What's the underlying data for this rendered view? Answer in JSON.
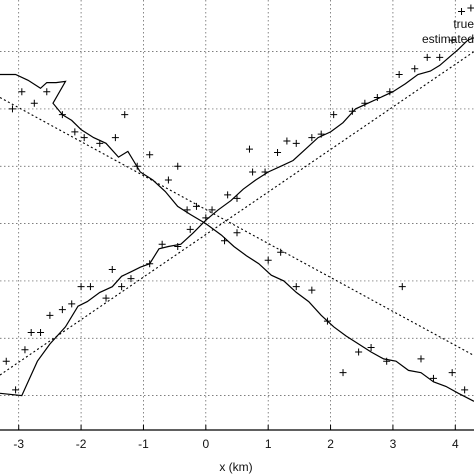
{
  "chart_data": {
    "type": "line",
    "title": "",
    "xlabel": "x (km)",
    "ylabel": "",
    "xlim": [
      -3.3,
      4.3
    ],
    "ylim": [
      -1.8,
      1.95
    ],
    "grid": true,
    "x_ticks": [
      -3,
      -2,
      -1,
      0,
      1,
      2,
      3,
      4
    ],
    "x_tick_labels": [
      "-3",
      "-2",
      "-1",
      "0",
      "1",
      "2",
      "3",
      "4"
    ],
    "y_ticks": [
      -1.5,
      -1,
      -0.5,
      0,
      0.5,
      1,
      1.5
    ],
    "legend": {
      "placement": "top-right",
      "entries": [
        "true",
        "estimated"
      ]
    },
    "series": [
      {
        "style": "dotted",
        "x": [
          -3.3,
          4.3
        ],
        "y": [
          -1.32,
          1.5
        ]
      },
      {
        "style": "dotted",
        "x": [
          -3.3,
          4.3
        ],
        "y": [
          1.1,
          -1.15
        ]
      },
      {
        "style": "solid",
        "x": [
          -3.3,
          -2.95,
          -2.7,
          -2.5,
          -2.25,
          -2.05,
          -1.9,
          -1.7,
          -1.5,
          -1.35,
          -1.2,
          -1.05,
          -0.9,
          -0.75,
          -0.6,
          -0.4,
          -0.2,
          0,
          0.2,
          0.4,
          0.6,
          0.8,
          1.0,
          1.2,
          1.4,
          1.6,
          1.8,
          2.0,
          2.2,
          2.4,
          2.6,
          2.8,
          3.0,
          3.2,
          3.4,
          3.6,
          3.75,
          3.9,
          4.05,
          4.2,
          4.3
        ],
        "y": [
          -1.48,
          -1.5,
          -1.2,
          -1.05,
          -0.9,
          -0.72,
          -0.68,
          -0.6,
          -0.55,
          -0.46,
          -0.42,
          -0.38,
          -0.35,
          -0.22,
          -0.2,
          -0.18,
          -0.08,
          0.03,
          0.12,
          0.2,
          0.3,
          0.38,
          0.45,
          0.5,
          0.55,
          0.65,
          0.75,
          0.8,
          0.88,
          1.0,
          1.05,
          1.1,
          1.15,
          1.22,
          1.3,
          1.33,
          1.38,
          1.45,
          1.52,
          1.6,
          1.62
        ]
      },
      {
        "style": "solid",
        "x": [
          -3.3,
          -3.05,
          -2.85,
          -2.65,
          -2.55,
          -2.4,
          -2.25,
          -2.45,
          -2.3,
          -2.15,
          -2.0,
          -1.8,
          -1.6,
          -1.4,
          -1.25,
          -1.05,
          -0.85,
          -0.65,
          -0.45,
          -0.25,
          0,
          0.25,
          0.45,
          0.65,
          0.85,
          1.05,
          1.25,
          1.45,
          1.65,
          1.85,
          2.05,
          2.25,
          2.45,
          2.65,
          2.85,
          3.05,
          3.25,
          3.45,
          3.65,
          3.85,
          4.05,
          4.3
        ],
        "y": [
          1.3,
          1.3,
          1.25,
          1.18,
          1.23,
          1.23,
          1.24,
          1.05,
          0.95,
          0.9,
          0.82,
          0.75,
          0.7,
          0.58,
          0.63,
          0.45,
          0.38,
          0.28,
          0.15,
          0.08,
          0.0,
          -0.1,
          -0.2,
          -0.28,
          -0.35,
          -0.45,
          -0.5,
          -0.6,
          -0.68,
          -0.8,
          -0.9,
          -0.98,
          -1.05,
          -1.12,
          -1.18,
          -1.2,
          -1.28,
          -1.3,
          -1.38,
          -1.42,
          -1.48,
          -1.55
        ]
      },
      {
        "style": "plus-markers",
        "x": [
          -3.2,
          -3.05,
          -2.9,
          -2.8,
          -2.65,
          -2.5,
          -2.3,
          -2.15,
          -2.0,
          -1.85,
          -1.6,
          -1.5,
          -1.35,
          -1.2,
          -0.9,
          -0.7,
          -0.45,
          -0.25,
          0.0,
          0.35,
          0.5,
          0.75,
          0.95,
          1.15,
          1.3,
          1.45,
          1.7,
          1.85,
          2.05,
          2.35,
          2.55,
          2.75,
          2.95,
          3.1,
          3.35,
          3.55,
          3.75,
          3.95,
          4.1,
          4.25,
          -3.1,
          -2.95,
          -2.75,
          -2.55,
          -2.3,
          -2.1,
          -1.95,
          -1.7,
          -1.45,
          -1.3,
          -1.1,
          -0.9,
          -0.6,
          -0.45,
          -0.3,
          -0.15,
          0.1,
          0.3,
          0.5,
          0.7,
          1.0,
          1.2,
          1.45,
          1.7,
          1.95,
          2.2,
          2.45,
          2.65,
          2.9,
          3.15,
          3.45,
          3.65,
          3.95,
          4.15
        ],
        "y": [
          -1.2,
          -1.45,
          -1.1,
          -0.95,
          -0.95,
          -0.8,
          -0.75,
          -0.7,
          -0.55,
          -0.55,
          -0.65,
          -0.4,
          -0.55,
          -0.48,
          -0.35,
          -0.18,
          -0.2,
          -0.05,
          0.05,
          0.25,
          0.22,
          0.45,
          0.45,
          0.62,
          0.72,
          0.7,
          0.75,
          0.78,
          0.95,
          0.98,
          1.05,
          1.1,
          1.15,
          1.3,
          1.35,
          1.45,
          1.45,
          1.6,
          1.85,
          1.88,
          1.0,
          1.15,
          1.05,
          1.15,
          0.95,
          0.8,
          0.75,
          0.7,
          0.75,
          0.95,
          0.5,
          0.6,
          0.38,
          0.5,
          0.12,
          0.15,
          0.12,
          -0.15,
          -0.08,
          0.65,
          -0.32,
          -0.25,
          -0.55,
          -0.58,
          -0.85,
          -1.3,
          -1.12,
          -1.08,
          -1.2,
          -0.55,
          -1.18,
          -1.35,
          -1.3,
          -1.45
        ]
      }
    ]
  }
}
